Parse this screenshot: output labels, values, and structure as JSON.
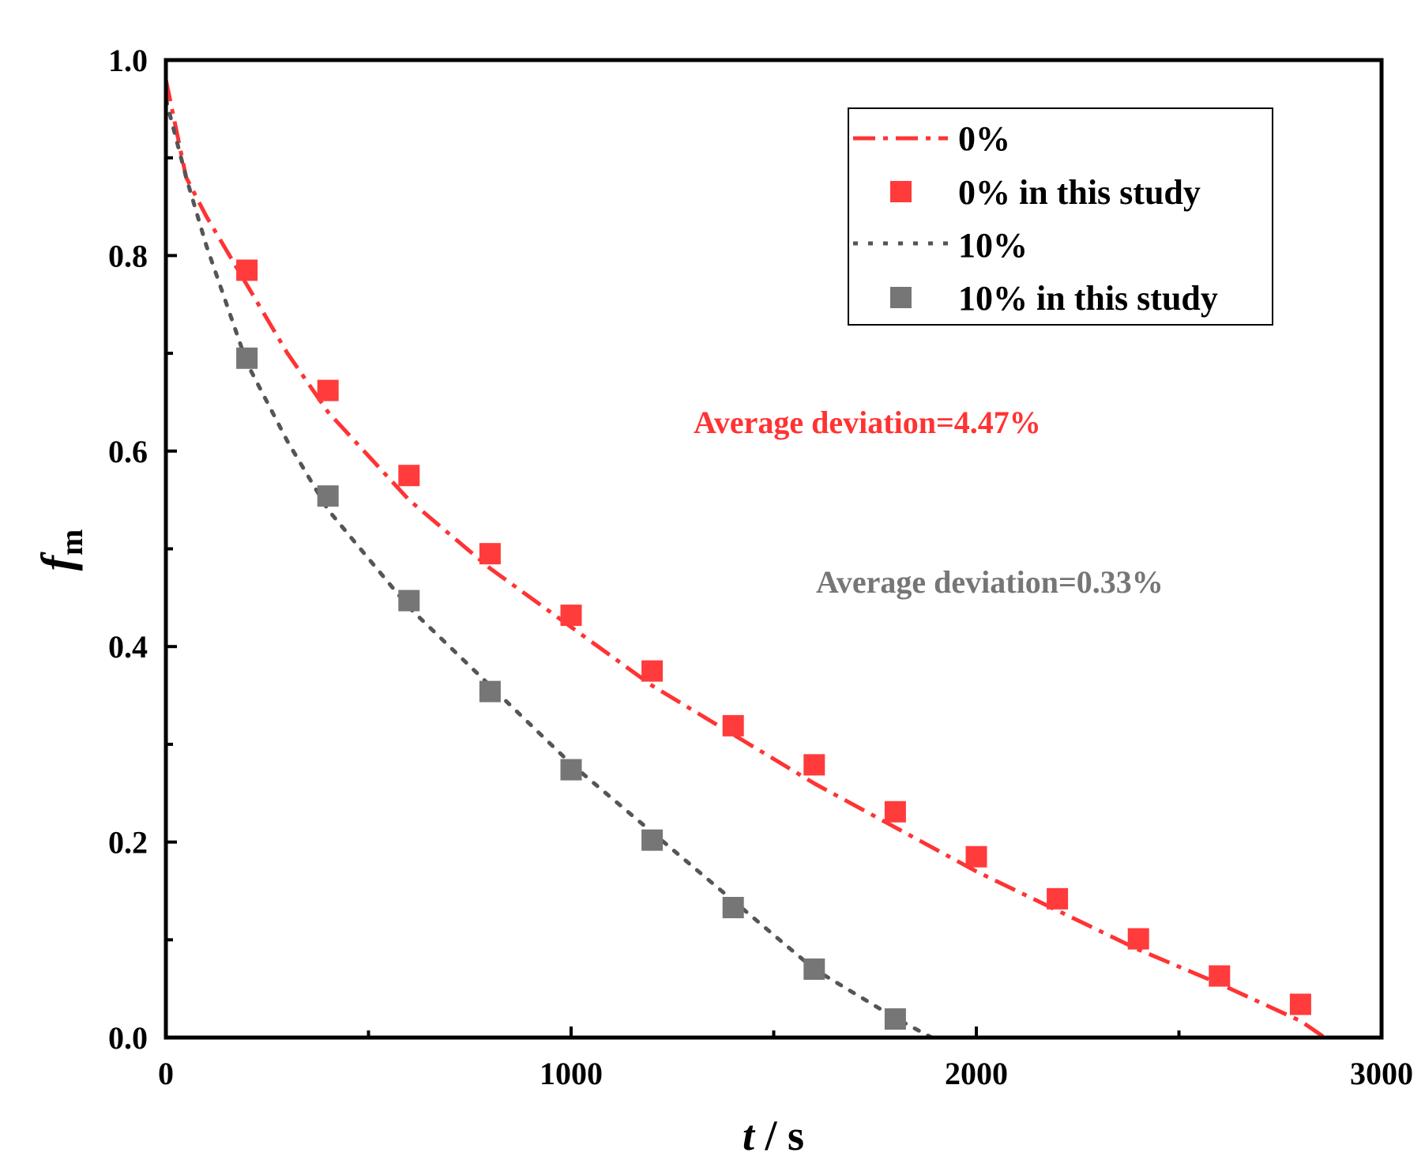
{
  "chart_data": {
    "type": "line",
    "title": "",
    "xlabel": {
      "var": "t",
      "unit": "s",
      "sep": " / "
    },
    "ylabel": {
      "var": "f",
      "sub": "m"
    },
    "xlim": [
      0,
      3000
    ],
    "ylim": [
      0,
      1.0
    ],
    "x_ticks": [
      0,
      1000,
      2000,
      3000
    ],
    "x_tick_labels": [
      "0",
      "1000",
      "2000",
      "3000"
    ],
    "y_ticks": [
      0.0,
      0.2,
      0.4,
      0.6,
      0.8,
      1.0
    ],
    "y_tick_labels": [
      "0.0",
      "0.2",
      "0.4",
      "0.6",
      "0.8",
      "1.0"
    ],
    "grid": false,
    "legend_position": "top-right",
    "series": [
      {
        "name": "0%",
        "kind": "line",
        "style": "dash-dot",
        "color": "#ff3333",
        "x": [
          0,
          50,
          100,
          200,
          300,
          400,
          600,
          800,
          1000,
          1200,
          1400,
          1600,
          1800,
          2000,
          2200,
          2400,
          2600,
          2800,
          2860
        ],
        "y": [
          0.98,
          0.88,
          0.84,
          0.77,
          0.7,
          0.64,
          0.55,
          0.48,
          0.42,
          0.36,
          0.31,
          0.26,
          0.215,
          0.17,
          0.13,
          0.09,
          0.055,
          0.017,
          0.0
        ]
      },
      {
        "name": "0% in this study",
        "kind": "scatter",
        "marker": "square",
        "color": "#ff3b3b",
        "x": [
          200,
          400,
          600,
          800,
          1000,
          1200,
          1400,
          1600,
          1800,
          2000,
          2200,
          2400,
          2600,
          2800
        ],
        "y": [
          0.785,
          0.662,
          0.575,
          0.495,
          0.432,
          0.375,
          0.319,
          0.279,
          0.231,
          0.185,
          0.142,
          0.101,
          0.063,
          0.034
        ]
      },
      {
        "name": "10%",
        "kind": "line",
        "style": "dotted",
        "color": "#555555",
        "x": [
          0,
          50,
          100,
          200,
          300,
          400,
          600,
          800,
          1000,
          1200,
          1400,
          1600,
          1800,
          1890
        ],
        "y": [
          0.96,
          0.88,
          0.81,
          0.69,
          0.61,
          0.54,
          0.44,
          0.36,
          0.28,
          0.21,
          0.14,
          0.07,
          0.02,
          0.0
        ]
      },
      {
        "name": "10% in this study",
        "kind": "scatter",
        "marker": "square",
        "color": "#767676",
        "x": [
          200,
          400,
          600,
          800,
          1000,
          1200,
          1400,
          1600,
          1800
        ],
        "y": [
          0.695,
          0.554,
          0.447,
          0.354,
          0.274,
          0.202,
          0.133,
          0.07,
          0.019
        ]
      }
    ],
    "annotations": [
      {
        "text": "Average deviation=4.47%",
        "color": "#ff3333"
      },
      {
        "text": "Average deviation=0.33%",
        "color": "#767676"
      }
    ]
  }
}
